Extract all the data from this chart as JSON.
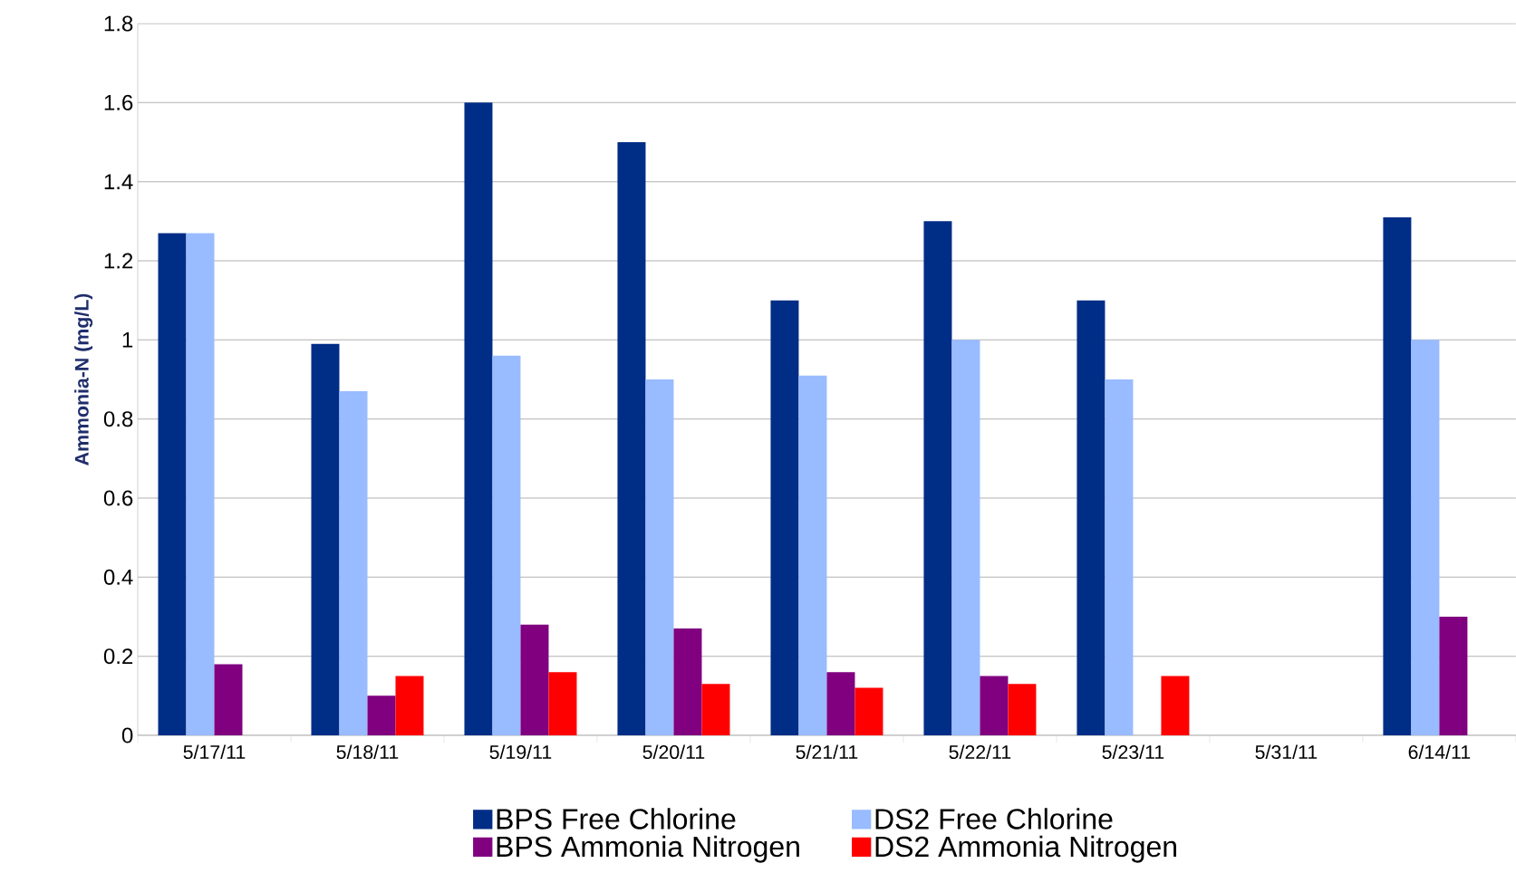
{
  "chart_data": {
    "type": "bar",
    "ylabel": "Ammonia-N (mg/L)",
    "categories": [
      "5/17/11",
      "5/18/11",
      "5/19/11",
      "5/20/11",
      "5/21/11",
      "5/22/11",
      "5/23/11",
      "5/31/11",
      "6/14/11"
    ],
    "series": [
      {
        "name": "BPS Free Chlorine",
        "color": "#002d86",
        "values": [
          1.27,
          0.99,
          1.6,
          1.5,
          1.1,
          1.3,
          1.1,
          null,
          1.31
        ]
      },
      {
        "name": "DS2 Free Chlorine",
        "color": "#99bbff",
        "values": [
          1.27,
          0.87,
          0.96,
          0.9,
          0.91,
          1.0,
          0.9,
          null,
          1.0
        ]
      },
      {
        "name": "BPS Ammonia Nitrogen",
        "color": "#800080",
        "values": [
          0.18,
          0.1,
          0.28,
          0.27,
          0.16,
          0.15,
          null,
          null,
          0.3
        ]
      },
      {
        "name": "DS2 Ammonia Nitrogen",
        "color": "#ff0000",
        "values": [
          null,
          0.15,
          0.16,
          0.13,
          0.12,
          0.13,
          0.15,
          null,
          null
        ]
      }
    ],
    "ylim": [
      0,
      1.8
    ],
    "yticks": [
      0,
      0.2,
      0.4,
      0.6,
      0.8,
      1,
      1.2,
      1.4,
      1.6,
      1.8
    ],
    "grid": "y",
    "legend": "bottom"
  }
}
